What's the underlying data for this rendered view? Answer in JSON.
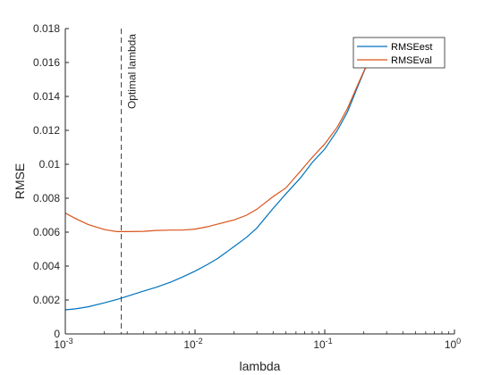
{
  "chart_data": {
    "type": "line",
    "xlabel": "lambda",
    "ylabel": "RMSE",
    "xscale": "log",
    "xlim": [
      0.001,
      1
    ],
    "ylim": [
      0,
      0.018
    ],
    "grid": false,
    "legend_position": "top-right",
    "x_ticks": [
      {
        "value": 0.001,
        "base": "10",
        "exp": "-3"
      },
      {
        "value": 0.01,
        "base": "10",
        "exp": "-2"
      },
      {
        "value": 0.1,
        "base": "10",
        "exp": "-1"
      },
      {
        "value": 1,
        "base": "10",
        "exp": "0"
      }
    ],
    "y_ticks": [
      {
        "value": 0,
        "label": "0"
      },
      {
        "value": 0.002,
        "label": "0.002"
      },
      {
        "value": 0.004,
        "label": "0.004"
      },
      {
        "value": 0.006,
        "label": "0.006"
      },
      {
        "value": 0.008,
        "label": "0.008"
      },
      {
        "value": 0.01,
        "label": "0.01"
      },
      {
        "value": 0.012,
        "label": "0.012"
      },
      {
        "value": 0.014,
        "label": "0.014"
      },
      {
        "value": 0.016,
        "label": "0.016"
      },
      {
        "value": 0.018,
        "label": "0.018"
      }
    ],
    "annotation": {
      "text": "Optimal lambda",
      "x": 0.0027
    },
    "series": [
      {
        "name": "RMSEest",
        "color": "#0072BD",
        "points": [
          [
            0.001,
            0.00142
          ],
          [
            0.0012,
            0.00148
          ],
          [
            0.0015,
            0.0016
          ],
          [
            0.002,
            0.00183
          ],
          [
            0.0025,
            0.00203
          ],
          [
            0.003,
            0.00222
          ],
          [
            0.004,
            0.00252
          ],
          [
            0.005,
            0.00275
          ],
          [
            0.0065,
            0.00306
          ],
          [
            0.008,
            0.00335
          ],
          [
            0.01,
            0.0037
          ],
          [
            0.0125,
            0.0041
          ],
          [
            0.015,
            0.00445
          ],
          [
            0.02,
            0.00515
          ],
          [
            0.025,
            0.0057
          ],
          [
            0.03,
            0.00625
          ],
          [
            0.04,
            0.0074
          ],
          [
            0.05,
            0.00825
          ],
          [
            0.065,
            0.0092
          ],
          [
            0.08,
            0.0101
          ],
          [
            0.1,
            0.0109
          ],
          [
            0.125,
            0.012
          ],
          [
            0.15,
            0.0131
          ],
          [
            0.18,
            0.0146
          ],
          [
            0.22,
            0.0162
          ],
          [
            0.25,
            0.0172
          ]
        ]
      },
      {
        "name": "RMSEval",
        "color": "#D95319",
        "points": [
          [
            0.001,
            0.00712
          ],
          [
            0.0012,
            0.0068
          ],
          [
            0.0015,
            0.00645
          ],
          [
            0.002,
            0.00615
          ],
          [
            0.0025,
            0.00603
          ],
          [
            0.003,
            0.00603
          ],
          [
            0.004,
            0.00605
          ],
          [
            0.005,
            0.0061
          ],
          [
            0.0065,
            0.00612
          ],
          [
            0.008,
            0.00612
          ],
          [
            0.01,
            0.00618
          ],
          [
            0.0125,
            0.00632
          ],
          [
            0.015,
            0.00648
          ],
          [
            0.02,
            0.00672
          ],
          [
            0.025,
            0.007
          ],
          [
            0.03,
            0.00735
          ],
          [
            0.04,
            0.0081
          ],
          [
            0.05,
            0.0086
          ],
          [
            0.065,
            0.0096
          ],
          [
            0.08,
            0.0104
          ],
          [
            0.1,
            0.0112
          ],
          [
            0.125,
            0.0122
          ],
          [
            0.15,
            0.0133
          ],
          [
            0.18,
            0.0147
          ],
          [
            0.22,
            0.0162
          ],
          [
            0.25,
            0.0172
          ]
        ]
      }
    ]
  }
}
